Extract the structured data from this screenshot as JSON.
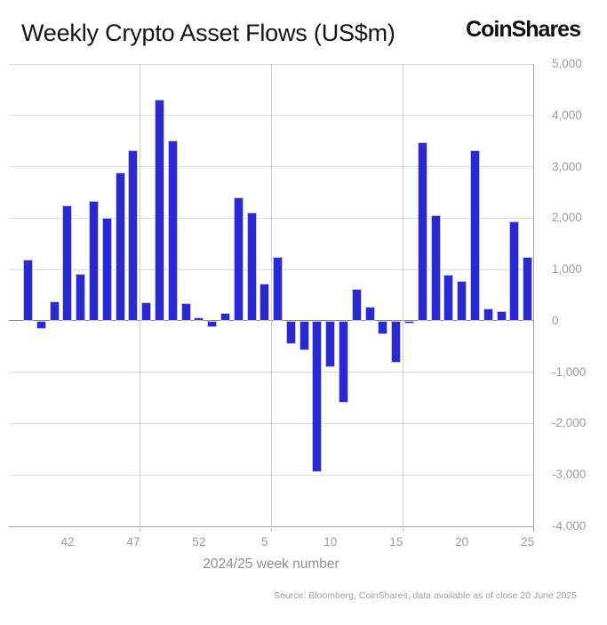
{
  "header": {
    "title": "Weekly Crypto Asset Flows (US$m)",
    "brand": "CoinShares"
  },
  "chart_data": {
    "type": "bar",
    "title": "Weekly Crypto Asset Flows (US$m)",
    "xlabel": "2024/25 week number",
    "ylabel": "",
    "ylim": [
      -4000,
      5000
    ],
    "grid": true,
    "legend": false,
    "bar_color": "#2a28d0",
    "bar_border_color": "#c4c3ea",
    "y_ticks": [
      5000,
      4000,
      3000,
      2000,
      1000,
      0,
      -1000,
      -2000,
      -3000,
      -4000
    ],
    "y_tick_labels": [
      "5,000",
      "4,000",
      "3,000",
      "2,000",
      "1,000",
      "0",
      "-1,000",
      "-2,000",
      "-3,000",
      "-4,000"
    ],
    "x_tick_weeks": [
      42,
      47,
      52,
      5,
      10,
      15,
      20,
      25
    ],
    "categories": [
      39,
      40,
      41,
      42,
      43,
      44,
      45,
      46,
      47,
      48,
      49,
      50,
      51,
      52,
      1,
      2,
      3,
      4,
      5,
      6,
      7,
      8,
      9,
      10,
      11,
      12,
      13,
      14,
      15,
      16,
      17,
      18,
      19,
      20,
      21,
      22,
      23,
      24,
      25
    ],
    "values": [
      1190,
      -160,
      380,
      2250,
      920,
      2340,
      2010,
      2880,
      3320,
      370,
      4300,
      3520,
      350,
      60,
      -120,
      160,
      2400,
      2110,
      720,
      1250,
      -450,
      -570,
      -2950,
      -900,
      -1600,
      620,
      270,
      -270,
      -820,
      -50,
      3480,
      2050,
      890,
      770,
      3320,
      240,
      180,
      1930,
      1240
    ]
  },
  "footer": {
    "source": "Source: Bloomberg, CoinShares, data available as of close 20 June 2025"
  }
}
